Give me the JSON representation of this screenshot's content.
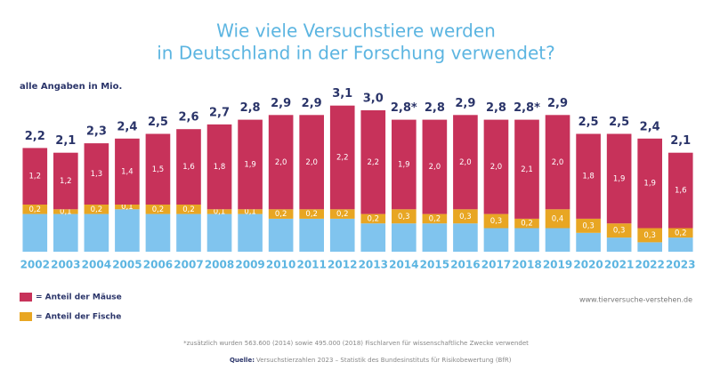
{
  "chart_data": {
    "type": "stacked-bar",
    "title": [
      "Wie viele Versuchstiere werden",
      "in Deutschland in der Forschung verwendet?"
    ],
    "subtitle": "alle Angaben in Mio.",
    "categories": [
      "2002",
      "2003",
      "2004",
      "2005",
      "2006",
      "2007",
      "2008",
      "2009",
      "2010",
      "2011",
      "2012",
      "2013",
      "2014",
      "2015",
      "2016",
      "2017",
      "2018",
      "2019",
      "2020",
      "2021",
      "2022",
      "2023"
    ],
    "series": [
      {
        "color": "#80c4ee",
        "values": [
          0.8,
          0.8,
          0.8,
          0.9,
          0.8,
          0.8,
          0.8,
          0.8,
          0.7,
          0.7,
          0.7,
          0.6,
          0.6,
          0.6,
          0.6,
          0.5,
          0.5,
          0.5,
          0.4,
          0.3,
          0.2,
          0.3
        ]
      },
      {
        "name": "= Anteil der Fische",
        "color": "#e8a623",
        "values": [
          0.2,
          0.1,
          0.2,
          0.1,
          0.2,
          0.2,
          0.1,
          0.1,
          0.2,
          0.2,
          0.2,
          0.2,
          0.3,
          0.2,
          0.3,
          0.3,
          0.2,
          0.4,
          0.3,
          0.3,
          0.3,
          0.2
        ],
        "value_labels": [
          "0,2",
          "0,1",
          "0,2",
          "0,1",
          "0,2",
          "0,2",
          "0,1",
          "0,1",
          "0,2",
          "0,2",
          "0,2",
          "0,2",
          "0,3",
          "0,2",
          "0,3",
          "0,3",
          "0,2",
          "0,4",
          "0,3",
          "0,3",
          "0,3",
          "0,2"
        ]
      },
      {
        "name": "= Anteil der Mäuse",
        "color": "#c7325a",
        "values": [
          1.2,
          1.2,
          1.3,
          1.4,
          1.5,
          1.6,
          1.8,
          1.9,
          2.0,
          2.0,
          2.2,
          2.2,
          1.9,
          2.0,
          2.0,
          2.0,
          2.1,
          2.0,
          1.8,
          1.9,
          1.9,
          1.6
        ],
        "value_labels": [
          "1,2",
          "1,2",
          "1,3",
          "1,4",
          "1,5",
          "1,6",
          "1,8",
          "1,9",
          "2,0",
          "2,0",
          "2,2",
          "2,2",
          "1,9",
          "2,0",
          "2,0",
          "2,0",
          "2,1",
          "2,0",
          "1,8",
          "1,9",
          "1,9",
          "1,6"
        ]
      }
    ],
    "totals": [
      2.2,
      2.1,
      2.3,
      2.4,
      2.5,
      2.6,
      2.7,
      2.8,
      2.9,
      2.9,
      3.1,
      3.0,
      2.8,
      2.8,
      2.9,
      2.8,
      2.8,
      2.9,
      2.5,
      2.5,
      2.4,
      2.1
    ],
    "total_labels": [
      "2,2",
      "2,1",
      "2,3",
      "2,4",
      "2,5",
      "2,6",
      "2,7",
      "2,8",
      "2,9",
      "2,9",
      "3,1",
      "3,0",
      "2,8*",
      "2,8",
      "2,9",
      "2,8",
      "2,8*",
      "2,9",
      "2,5",
      "2,5",
      "2,4",
      "2,1"
    ],
    "website": "www.tierversuche-verstehen.de",
    "footnote": "*zusätzlich wurden 563.600 (2014) sowie 495.000 (2018) Fischlarven für wissenschaftliche Zwecke verwendet",
    "source_label": "Quelle:",
    "source": "Versuchstierzahlen 2023 – Statistik des Bundesinstituts für Risikobewertung (BfR)"
  }
}
